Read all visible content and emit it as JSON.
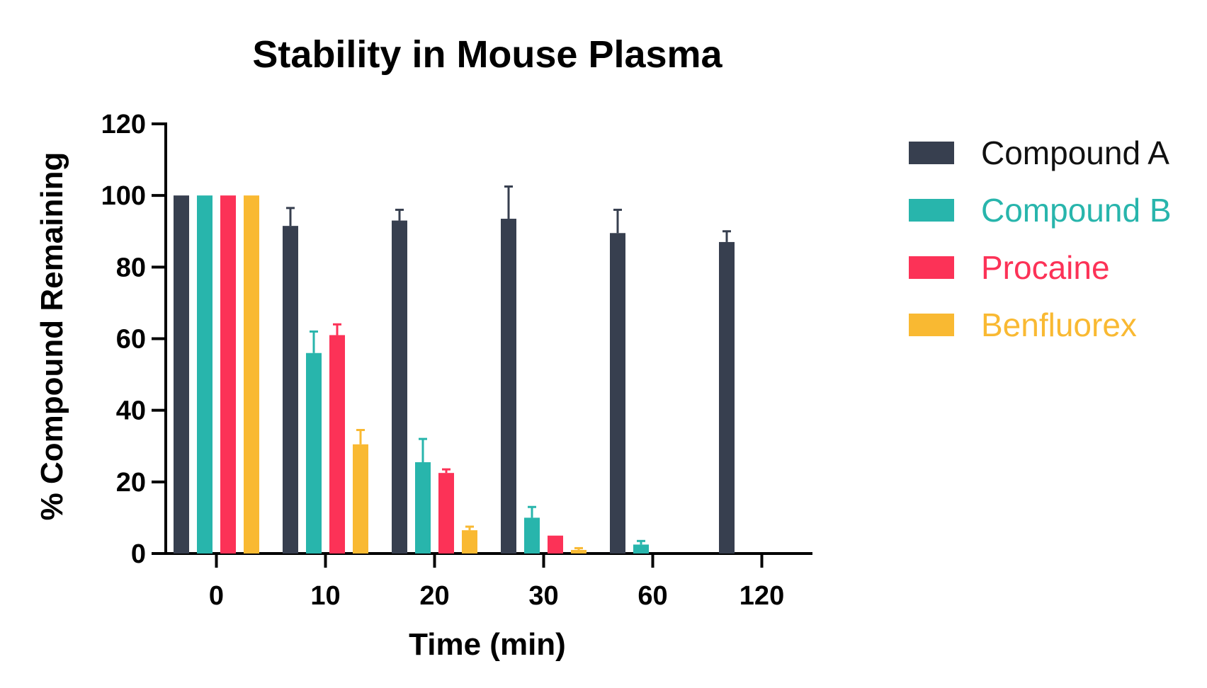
{
  "chart_data": {
    "type": "bar",
    "title": "Stability in Mouse Plasma",
    "xlabel": "Time (min)",
    "ylabel": "% Compound Remaining",
    "categories": [
      "0",
      "10",
      "20",
      "30",
      "60",
      "120"
    ],
    "ylim": [
      0,
      120
    ],
    "yticks": [
      0,
      20,
      40,
      60,
      80,
      100,
      120
    ],
    "grid": false,
    "legend_position": "right",
    "series": [
      {
        "name": "Compound A",
        "color": "#373f4f",
        "values": [
          100,
          91.5,
          93,
          93.5,
          89.5,
          87
        ],
        "errors": [
          0,
          5,
          3,
          9,
          6.5,
          3
        ]
      },
      {
        "name": "Compound B",
        "color": "#28b5ac",
        "values": [
          100,
          56,
          25.5,
          10,
          2.5,
          0
        ],
        "errors": [
          0,
          6,
          6.5,
          3,
          1,
          0
        ]
      },
      {
        "name": "Procaine",
        "color": "#fc3257",
        "values": [
          100,
          61,
          22.5,
          5,
          0,
          0
        ],
        "errors": [
          0,
          3,
          1,
          0,
          0,
          0
        ]
      },
      {
        "name": "Benfluorex",
        "color": "#f9b932",
        "values": [
          100,
          30.5,
          6.5,
          1,
          0,
          0
        ],
        "errors": [
          0,
          4,
          1,
          0.5,
          0,
          0
        ]
      }
    ]
  }
}
